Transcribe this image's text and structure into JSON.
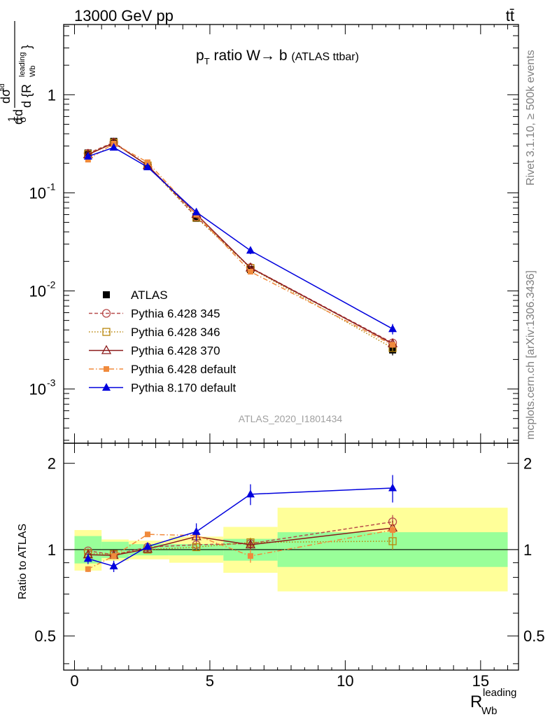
{
  "header": {
    "beam": "13000 GeV pp",
    "process": "tt̄"
  },
  "side": {
    "rivet": "Rivet 3.1.10, ≥ 500k events",
    "mcplots": "mcplots.cern.ch [arXiv:1306.3436]"
  },
  "chart_data": {
    "type": "line",
    "title": "p_T ratio W → b (ATLAS ttbar)",
    "title_parts": {
      "p": "p",
      "sub": "T",
      "rest": " ratio W",
      "arrow": "→",
      "b": " b",
      "small": "(ATLAS ttbar)"
    },
    "analysis_id": "ATLAS_2020_I1801434",
    "xlabel": "R_Wb^leading",
    "xlabel_parts": {
      "main": "R",
      "sub": "Wb",
      "sup": "leading"
    },
    "ylabel": "1/σ dσ^fid / d{R_Wb^leading}",
    "ratio_ylabel": "Ratio to ATLAS",
    "xlim": [
      -0.4,
      16.4
    ],
    "ylim": [
      0.00028,
      5.2
    ],
    "yscale": "log",
    "ratio_ylim": [
      0.38,
      2.35
    ],
    "ratio_yscale": "log",
    "x_ticks": [
      "0",
      "5",
      "10",
      "15"
    ],
    "y_ticks": [
      "10^-3",
      "10^-2",
      "10^-1",
      "1"
    ],
    "ratio_ticks": [
      "0.5",
      "1",
      "2"
    ],
    "legend_position": "bottom-left",
    "bins": [
      [
        0,
        1
      ],
      [
        1,
        2
      ],
      [
        2,
        3.5
      ],
      [
        3.5,
        5.5
      ],
      [
        5.5,
        7.5
      ],
      [
        7.5,
        16
      ]
    ],
    "band_inner": [
      [
        0.895,
        1.115
      ],
      [
        0.935,
        1.065
      ],
      [
        0.955,
        1.045
      ],
      [
        0.955,
        1.045
      ],
      [
        0.915,
        1.09
      ],
      [
        0.87,
        1.15
      ]
    ],
    "band_outer": [
      [
        0.845,
        1.17
      ],
      [
        0.915,
        1.085
      ],
      [
        0.925,
        1.075
      ],
      [
        0.9,
        1.11
      ],
      [
        0.83,
        1.2
      ],
      [
        0.715,
        1.4
      ]
    ],
    "series": [
      {
        "name": "ATLAS",
        "color": "#000000",
        "marker": "square-filled",
        "line": "none",
        "x": [
          0.5,
          1.45,
          2.7,
          4.5,
          6.5,
          11.75
        ],
        "y": [
          0.255,
          0.335,
          0.19,
          0.055,
          0.0165,
          0.0025
        ],
        "yerr": [
          0.018,
          0.023,
          0.012,
          0.004,
          0.0015,
          0.0003
        ]
      },
      {
        "name": "Pythia 6.428 345",
        "color": "#b84c4c",
        "marker": "circle-open",
        "line": "dashed",
        "x": [
          0.5,
          1.45,
          2.7,
          4.5,
          6.5,
          11.75
        ],
        "y": [
          0.253,
          0.327,
          0.19,
          0.057,
          0.0173,
          0.00295
        ],
        "yerr": [
          0.003,
          0.004,
          0.002,
          0.0007,
          0.0005,
          0.00018
        ]
      },
      {
        "name": "Pythia 6.428 346",
        "color": "#b8860b",
        "marker": "square-open",
        "line": "dotted",
        "x": [
          0.5,
          1.45,
          2.7,
          4.5,
          6.5,
          11.75
        ],
        "y": [
          0.248,
          0.325,
          0.19,
          0.056,
          0.0171,
          0.00262
        ],
        "yerr": [
          0.003,
          0.004,
          0.002,
          0.0007,
          0.0005,
          0.00017
        ]
      },
      {
        "name": "Pythia 6.428 370",
        "color": "#8b1a1a",
        "marker": "triangle-open",
        "line": "solid",
        "x": [
          0.5,
          1.45,
          2.7,
          4.5,
          6.5,
          11.75
        ],
        "y": [
          0.245,
          0.323,
          0.19,
          0.0605,
          0.0172,
          0.0029
        ],
        "yerr": [
          0.003,
          0.004,
          0.002,
          0.0007,
          0.0005,
          0.00018
        ]
      },
      {
        "name": "Pythia 6.428 default",
        "color": "#f08a3c",
        "marker": "square-filled-small",
        "line": "dashdot",
        "x": [
          0.5,
          1.45,
          2.7,
          4.5,
          6.5,
          11.75
        ],
        "y": [
          0.218,
          0.318,
          0.205,
          0.06,
          0.0157,
          0.00282
        ],
        "yerr": [
          0.003,
          0.004,
          0.002,
          0.0007,
          0.0005,
          0.00018
        ]
      },
      {
        "name": "Pythia 8.170 default",
        "color": "#0000dd",
        "marker": "triangle-filled",
        "line": "solid",
        "x": [
          0.5,
          1.45,
          2.7,
          4.5,
          6.5,
          11.75
        ],
        "y": [
          0.235,
          0.29,
          0.183,
          0.0635,
          0.0258,
          0.0041
        ],
        "yerr": [
          0.006,
          0.007,
          0.004,
          0.002,
          0.0021,
          0.0005
        ]
      }
    ],
    "ratio_series": [
      {
        "name": "Pythia 6.428 345",
        "y": [
          0.99,
          0.96,
          1.02,
          1.04,
          1.05,
          1.25
        ],
        "yerr": [
          0.02,
          0.02,
          0.02,
          0.03,
          0.04,
          0.07
        ]
      },
      {
        "name": "Pythia 6.428 346",
        "y": [
          0.97,
          0.965,
          1.0,
          1.02,
          1.06,
          1.07
        ],
        "yerr": [
          0.02,
          0.02,
          0.02,
          0.03,
          0.04,
          0.07
        ]
      },
      {
        "name": "Pythia 6.428 370",
        "y": [
          0.96,
          0.955,
          1.005,
          1.11,
          1.04,
          1.19
        ],
        "yerr": [
          0.02,
          0.02,
          0.02,
          0.03,
          0.04,
          0.07
        ]
      },
      {
        "name": "Pythia 6.428 default",
        "y": [
          0.855,
          0.95,
          1.13,
          1.12,
          0.95,
          1.17
        ],
        "yerr": [
          0.02,
          0.02,
          0.02,
          0.03,
          0.05,
          0.07
        ]
      },
      {
        "name": "Pythia 8.170 default",
        "y": [
          0.93,
          0.875,
          1.025,
          1.155,
          1.56,
          1.64
        ],
        "yerr": [
          0.04,
          0.04,
          0.03,
          0.08,
          0.13,
          0.18
        ]
      }
    ]
  }
}
